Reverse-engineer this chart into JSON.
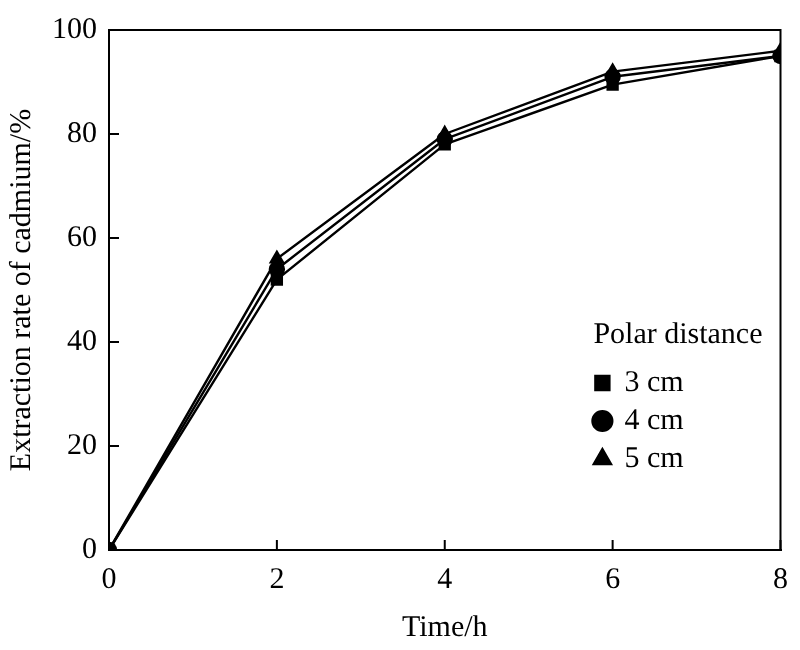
{
  "chart_data": {
    "type": "line",
    "xlabel": "Time/h",
    "ylabel": "Extraction rate of cadmium/%",
    "legend_title": "Polar distance",
    "x": [
      0,
      2,
      4,
      6,
      8
    ],
    "series": [
      {
        "name": "3 cm",
        "color": "#000000",
        "marker": "square",
        "values": [
          0,
          52,
          78,
          89.5,
          95
        ]
      },
      {
        "name": "4 cm",
        "color": "#000000",
        "marker": "circle",
        "values": [
          0,
          54,
          79,
          91,
          95
        ]
      },
      {
        "name": "5 cm",
        "color": "#000000",
        "marker": "triangle",
        "values": [
          0,
          56,
          80,
          92,
          96
        ]
      }
    ],
    "xlim": [
      0,
      8
    ],
    "xticks": [
      0,
      2,
      4,
      6,
      8
    ],
    "ylim": [
      0,
      100
    ],
    "yticks": [
      0,
      20,
      40,
      60,
      80,
      100
    ],
    "grid": false,
    "legend": "right",
    "line_style": "solid"
  }
}
